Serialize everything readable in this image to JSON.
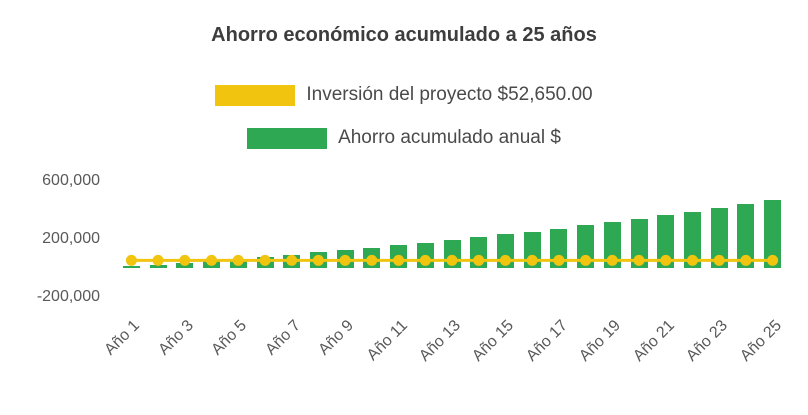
{
  "title": "Ahorro económico acumulado a 25 años",
  "legend": {
    "items": [
      {
        "label": "Inversión del proyecto $52,650.00",
        "color": "#F1C40F"
      },
      {
        "label": "Ahorro acumulado anual $",
        "color": "#2EA853"
      }
    ]
  },
  "chart_data": {
    "type": "bar",
    "title": "Ahorro económico acumulado a 25 años",
    "categories": [
      "Año 1",
      "Año 2",
      "Año 3",
      "Año 4",
      "Año 5",
      "Año 6",
      "Año 7",
      "Año 8",
      "Año 9",
      "Año 10",
      "Año 11",
      "Año 12",
      "Año 13",
      "Año 14",
      "Año 15",
      "Año 16",
      "Año 17",
      "Año 18",
      "Año 19",
      "Año 20",
      "Año 21",
      "Año 22",
      "Año 23",
      "Año 24",
      "Año 25"
    ],
    "series": [
      {
        "name": "Ahorro acumulado anual $",
        "type": "bar",
        "color": "#2EA853",
        "values": [
          12000,
          24400,
          37300,
          50600,
          64300,
          78600,
          93400,
          108600,
          124400,
          140800,
          157700,
          175200,
          193400,
          212100,
          231500,
          251700,
          272500,
          294000,
          316300,
          339400,
          363200,
          387900,
          413500,
          440000,
          467400
        ]
      },
      {
        "name": "Inversión del proyecto $52,650.00",
        "type": "line",
        "marker": "circle",
        "color": "#F1C40F",
        "values": [
          52650,
          52650,
          52650,
          52650,
          52650,
          52650,
          52650,
          52650,
          52650,
          52650,
          52650,
          52650,
          52650,
          52650,
          52650,
          52650,
          52650,
          52650,
          52650,
          52650,
          52650,
          52650,
          52650,
          52650,
          52650
        ]
      }
    ],
    "ylim": [
      -200000,
      600000
    ],
    "yticks": [
      {
        "value": 600000,
        "label": "600,000"
      },
      {
        "value": 200000,
        "label": "200,000"
      },
      {
        "value": -200000,
        "label": "-200,000"
      }
    ],
    "xtick_step": 2,
    "grid": false,
    "legend_position": "top"
  }
}
